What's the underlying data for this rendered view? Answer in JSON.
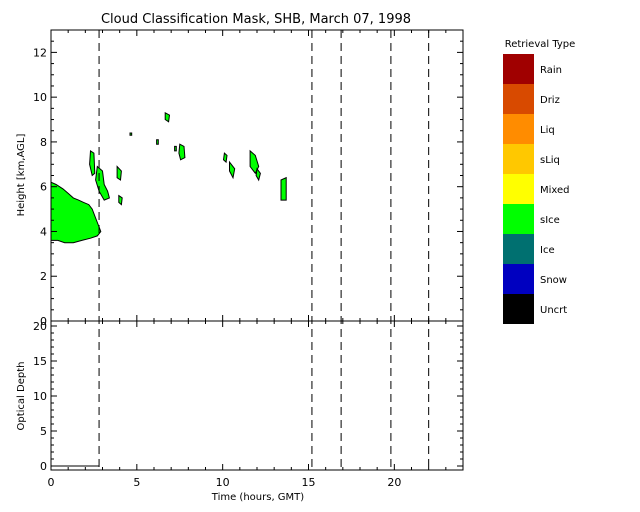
{
  "chart_data": {
    "type": "heatmap",
    "title": "Cloud Classification Mask, SHB, March 07, 1998",
    "xlabel": "Time (hours, GMT)",
    "xlim": [
      0,
      24
    ],
    "x_ticks": [
      "0",
      "5",
      "10",
      "15",
      "20"
    ],
    "vertical_dashed_lines_hours": [
      2.8,
      15.2,
      16.9,
      19.8,
      22.0
    ],
    "panels": [
      {
        "name": "mask",
        "ylabel": "Height [km,AGL]",
        "ylim": [
          0,
          13
        ],
        "y_ticks": [
          "0",
          "2",
          "4",
          "6",
          "8",
          "10",
          "12"
        ],
        "cloud_regions": [
          {
            "class": "sIce",
            "points": [
              [
                0,
                6.2
              ],
              [
                0.3,
                6.1
              ],
              [
                0.7,
                5.9
              ],
              [
                1.0,
                5.7
              ],
              [
                1.3,
                5.5
              ],
              [
                1.6,
                5.4
              ],
              [
                1.9,
                5.3
              ],
              [
                2.2,
                5.2
              ],
              [
                2.4,
                5.0
              ],
              [
                2.6,
                4.6
              ],
              [
                2.8,
                4.2
              ],
              [
                2.9,
                4.0
              ],
              [
                2.7,
                3.8
              ],
              [
                2.3,
                3.7
              ],
              [
                1.8,
                3.6
              ],
              [
                1.3,
                3.5
              ],
              [
                0.8,
                3.5
              ],
              [
                0.4,
                3.6
              ],
              [
                0,
                3.6
              ]
            ]
          },
          {
            "class": "sIce",
            "points": [
              [
                2.3,
                7.6
              ],
              [
                2.5,
                7.5
              ],
              [
                2.55,
                6.6
              ],
              [
                2.4,
                6.5
              ],
              [
                2.25,
                7.0
              ]
            ]
          },
          {
            "class": "sIce",
            "points": [
              [
                2.7,
                6.9
              ],
              [
                3.0,
                6.7
              ],
              [
                3.1,
                6.1
              ],
              [
                3.3,
                5.8
              ],
              [
                3.4,
                5.5
              ],
              [
                3.1,
                5.4
              ],
              [
                2.8,
                5.8
              ],
              [
                2.6,
                6.3
              ]
            ]
          },
          {
            "class": "sIce",
            "points": [
              [
                3.85,
                6.9
              ],
              [
                4.1,
                6.7
              ],
              [
                4.05,
                6.3
              ],
              [
                3.85,
                6.4
              ]
            ]
          },
          {
            "class": "sIce",
            "points": [
              [
                3.95,
                5.6
              ],
              [
                4.15,
                5.5
              ],
              [
                4.1,
                5.2
              ],
              [
                3.95,
                5.3
              ]
            ]
          },
          {
            "class": "sIce",
            "points": [
              [
                4.6,
                8.4
              ],
              [
                4.7,
                8.4
              ],
              [
                4.7,
                8.3
              ],
              [
                4.6,
                8.3
              ]
            ]
          },
          {
            "class": "sIce",
            "points": [
              [
                6.15,
                8.1
              ],
              [
                6.25,
                8.1
              ],
              [
                6.25,
                7.9
              ],
              [
                6.15,
                7.9
              ]
            ]
          },
          {
            "class": "sIce",
            "points": [
              [
                6.65,
                9.3
              ],
              [
                6.9,
                9.2
              ],
              [
                6.85,
                8.9
              ],
              [
                6.65,
                9.0
              ]
            ]
          },
          {
            "class": "sIce",
            "points": [
              [
                7.5,
                7.9
              ],
              [
                7.75,
                7.8
              ],
              [
                7.8,
                7.3
              ],
              [
                7.55,
                7.2
              ],
              [
                7.45,
                7.5
              ]
            ]
          },
          {
            "class": "sIce",
            "points": [
              [
                7.2,
                7.8
              ],
              [
                7.3,
                7.8
              ],
              [
                7.3,
                7.6
              ],
              [
                7.2,
                7.6
              ]
            ]
          },
          {
            "class": "sIce",
            "points": [
              [
                10.1,
                7.5
              ],
              [
                10.25,
                7.4
              ],
              [
                10.2,
                7.1
              ],
              [
                10.05,
                7.2
              ]
            ]
          },
          {
            "class": "sIce",
            "points": [
              [
                10.4,
                7.1
              ],
              [
                10.7,
                6.8
              ],
              [
                10.6,
                6.4
              ],
              [
                10.4,
                6.7
              ]
            ]
          },
          {
            "class": "sIce",
            "points": [
              [
                11.6,
                7.6
              ],
              [
                11.9,
                7.4
              ],
              [
                12.1,
                6.9
              ],
              [
                11.9,
                6.6
              ],
              [
                11.6,
                6.9
              ]
            ]
          },
          {
            "class": "sIce",
            "points": [
              [
                12.0,
                6.8
              ],
              [
                12.2,
                6.6
              ],
              [
                12.1,
                6.3
              ],
              [
                11.95,
                6.5
              ]
            ]
          },
          {
            "class": "sIce",
            "points": [
              [
                13.4,
                6.3
              ],
              [
                13.7,
                6.4
              ],
              [
                13.7,
                5.4
              ],
              [
                13.4,
                5.4
              ]
            ]
          }
        ]
      },
      {
        "name": "optical-depth",
        "ylabel": "Optical Depth",
        "ylim": [
          0,
          20
        ],
        "y_ticks": [
          "0",
          "5",
          "10",
          "15",
          "20"
        ],
        "x": [
          0,
          0.5,
          1.0,
          1.5,
          2.0,
          2.5,
          2.8
        ],
        "y": [
          0,
          0,
          0,
          0,
          0,
          0,
          0
        ]
      }
    ],
    "legend": {
      "title": "Retrieval Type",
      "placement": "right",
      "entries": [
        {
          "label": "Rain",
          "color": "#a00000"
        },
        {
          "label": "Driz",
          "color": "#d84a00"
        },
        {
          "label": "Liq",
          "color": "#ff8c00"
        },
        {
          "label": "sLiq",
          "color": "#ffc800"
        },
        {
          "label": "Mixed",
          "color": "#ffff00"
        },
        {
          "label": "sIce",
          "color": "#00ff00"
        },
        {
          "label": "Ice",
          "color": "#007070"
        },
        {
          "label": "Snow",
          "color": "#0000c0"
        },
        {
          "label": "Uncrt",
          "color": "#000000"
        }
      ]
    }
  }
}
